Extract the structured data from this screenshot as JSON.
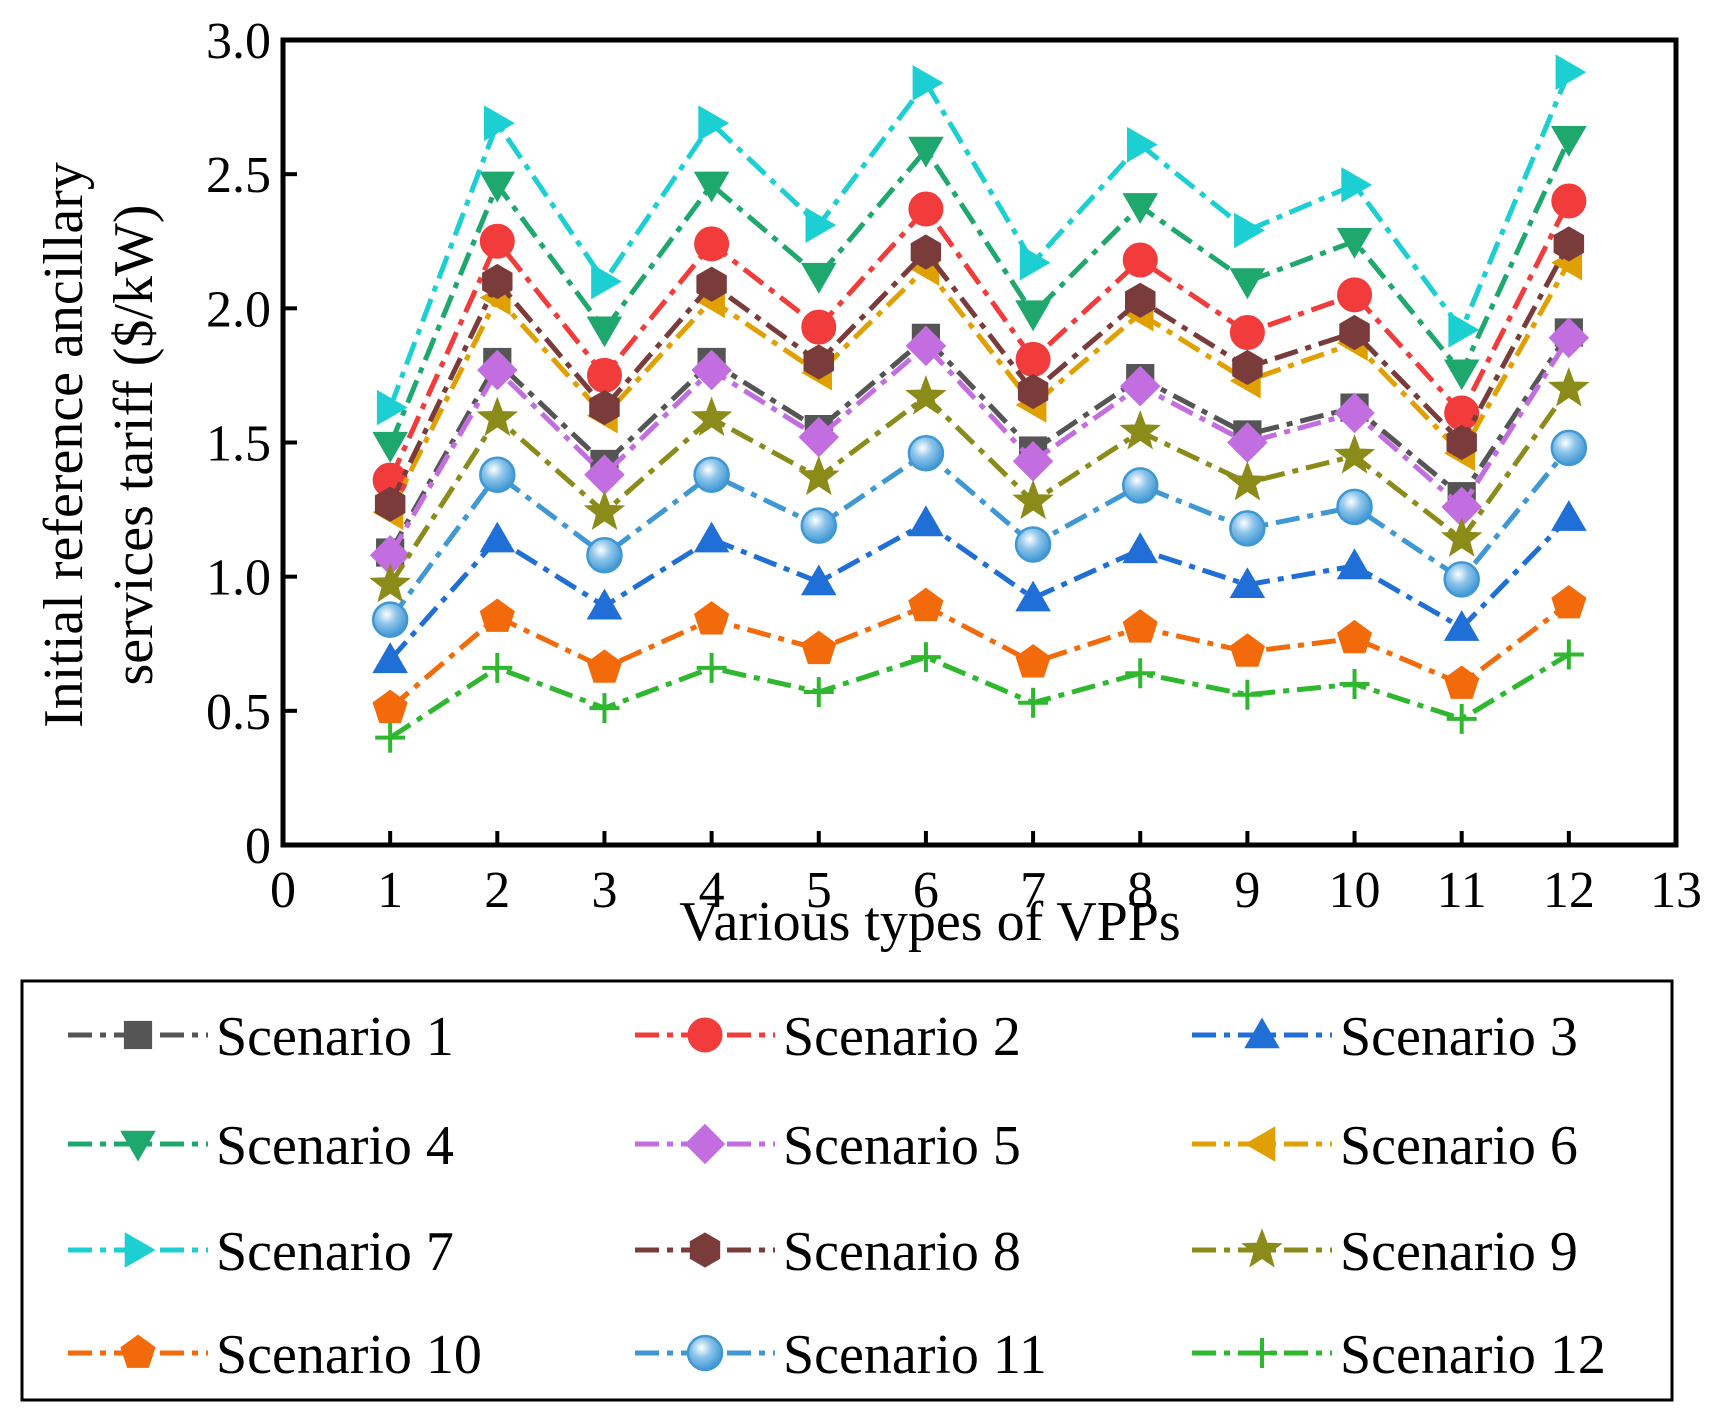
{
  "chart_data": {
    "type": "line",
    "title": "",
    "xlabel": "Various types of VPPs",
    "ylabel_line1": "Initial reference ancillary",
    "ylabel_line2": "services tariff ($/kW)",
    "xlim": [
      0,
      13
    ],
    "ylim": [
      0,
      3.0
    ],
    "x_ticks": [
      0,
      1,
      2,
      3,
      4,
      5,
      6,
      7,
      8,
      9,
      10,
      11,
      12,
      13
    ],
    "x_tick_labels": [
      "0",
      "1",
      "2",
      "3",
      "4",
      "5",
      "6",
      "7",
      "8",
      "9",
      "10",
      "11",
      "12",
      "13"
    ],
    "y_ticks": [
      0,
      0.5,
      1.0,
      1.5,
      2.0,
      2.5,
      3.0
    ],
    "y_tick_labels": [
      "0",
      "0.5",
      "1.0",
      "1.5",
      "2.0",
      "2.5",
      "3.0"
    ],
    "grid": false,
    "legend_position": "bottom",
    "x": [
      1,
      2,
      3,
      4,
      5,
      6,
      7,
      8,
      9,
      10,
      11,
      12
    ],
    "series": [
      {
        "name": "Scenario 1",
        "color": "#555555",
        "marker": "square",
        "values": [
          1.09,
          1.8,
          1.42,
          1.8,
          1.55,
          1.89,
          1.47,
          1.74,
          1.53,
          1.63,
          1.3,
          1.91
        ]
      },
      {
        "name": "Scenario 2",
        "color": "#f23b3b",
        "marker": "circle",
        "values": [
          1.36,
          2.25,
          1.75,
          2.24,
          1.93,
          2.37,
          1.81,
          2.18,
          1.91,
          2.05,
          1.61,
          2.4
        ]
      },
      {
        "name": "Scenario 3",
        "color": "#1f6fd6",
        "marker": "triangle-up",
        "values": [
          0.69,
          1.14,
          0.89,
          1.14,
          0.98,
          1.2,
          0.92,
          1.1,
          0.97,
          1.04,
          0.81,
          1.22
        ]
      },
      {
        "name": "Scenario 4",
        "color": "#1ea86e",
        "marker": "triangle-down",
        "values": [
          1.49,
          2.46,
          1.92,
          2.46,
          2.12,
          2.59,
          1.98,
          2.38,
          2.1,
          2.25,
          1.76,
          2.63
        ]
      },
      {
        "name": "Scenario 5",
        "color": "#c36ee0",
        "marker": "diamond",
        "values": [
          1.08,
          1.77,
          1.38,
          1.77,
          1.52,
          1.86,
          1.43,
          1.71,
          1.5,
          1.61,
          1.26,
          1.89
        ]
      },
      {
        "name": "Scenario 6",
        "color": "#e0a000",
        "marker": "triangle-left",
        "values": [
          1.24,
          2.04,
          1.6,
          2.03,
          1.76,
          2.15,
          1.64,
          1.98,
          1.73,
          1.87,
          1.46,
          2.17
        ]
      },
      {
        "name": "Scenario 7",
        "color": "#1ccfd2",
        "marker": "triangle-right",
        "values": [
          1.63,
          2.69,
          2.1,
          2.69,
          2.31,
          2.84,
          2.17,
          2.61,
          2.29,
          2.46,
          1.92,
          2.88
        ]
      },
      {
        "name": "Scenario 8",
        "color": "#7a3b3b",
        "marker": "hexagon",
        "values": [
          1.27,
          2.1,
          1.63,
          2.09,
          1.8,
          2.21,
          1.69,
          2.03,
          1.78,
          1.91,
          1.5,
          2.24
        ]
      },
      {
        "name": "Scenario 9",
        "color": "#8b8b1a",
        "marker": "star",
        "values": [
          0.97,
          1.59,
          1.24,
          1.59,
          1.37,
          1.67,
          1.28,
          1.54,
          1.35,
          1.45,
          1.14,
          1.7
        ]
      },
      {
        "name": "Scenario 10",
        "color": "#f26a0a",
        "marker": "pentagon",
        "values": [
          0.51,
          0.85,
          0.66,
          0.84,
          0.73,
          0.89,
          0.68,
          0.81,
          0.72,
          0.77,
          0.6,
          0.9
        ]
      },
      {
        "name": "Scenario 11",
        "color": "#3f97d4",
        "marker": "sphere",
        "values": [
          0.84,
          1.38,
          1.08,
          1.38,
          1.19,
          1.46,
          1.12,
          1.34,
          1.18,
          1.26,
          0.99,
          1.48
        ]
      },
      {
        "name": "Scenario 12",
        "color": "#2fb82f",
        "marker": "plus",
        "values": [
          0.4,
          0.66,
          0.51,
          0.66,
          0.57,
          0.7,
          0.53,
          0.64,
          0.56,
          0.6,
          0.47,
          0.71
        ]
      }
    ]
  }
}
